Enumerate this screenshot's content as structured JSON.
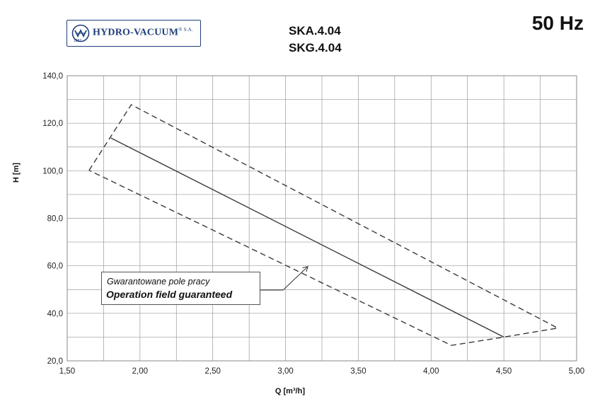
{
  "header": {
    "logo_text": "HYDRO-VACUUM",
    "logo_suffix": "® S.A.",
    "logo_year": "1882",
    "model_1": "SKA.4.04",
    "model_2": "SKG.4.04",
    "frequency": "50 Hz"
  },
  "colors": {
    "brand": "#1f3f7a",
    "grid": "#9a9a9a",
    "line": "#3a3a3a"
  },
  "annotation": {
    "polish": "Gwarantowane pole pracy",
    "english": "Operation field guaranteed",
    "arrow_target": [
      3.15,
      59.5
    ]
  },
  "chart_data": {
    "type": "line",
    "xlabel": "Q [m³/h]",
    "ylabel": "H  [m]",
    "xlim": [
      1.5,
      5.0
    ],
    "ylim": [
      20.0,
      140.0
    ],
    "x_ticks": [
      "1,50",
      "2,00",
      "2,50",
      "3,00",
      "3,50",
      "4,00",
      "4,50",
      "5,00"
    ],
    "y_ticks": [
      "20,0",
      "40,0",
      "60,0",
      "80,0",
      "100,0",
      "120,0",
      "140,0"
    ],
    "x_minor_step": 0.25,
    "y_minor_step": 10,
    "grid": true,
    "series": [
      {
        "style": "solid",
        "x": [
          1.8,
          4.5
        ],
        "y": [
          113.8,
          30.0
        ]
      },
      {
        "style": "dashed",
        "x": [
          1.65,
          1.94,
          4.87,
          4.5,
          4.14,
          1.65
        ],
        "y": [
          100.2,
          127.8,
          33.8,
          30.0,
          26.5,
          100.2
        ]
      }
    ]
  }
}
